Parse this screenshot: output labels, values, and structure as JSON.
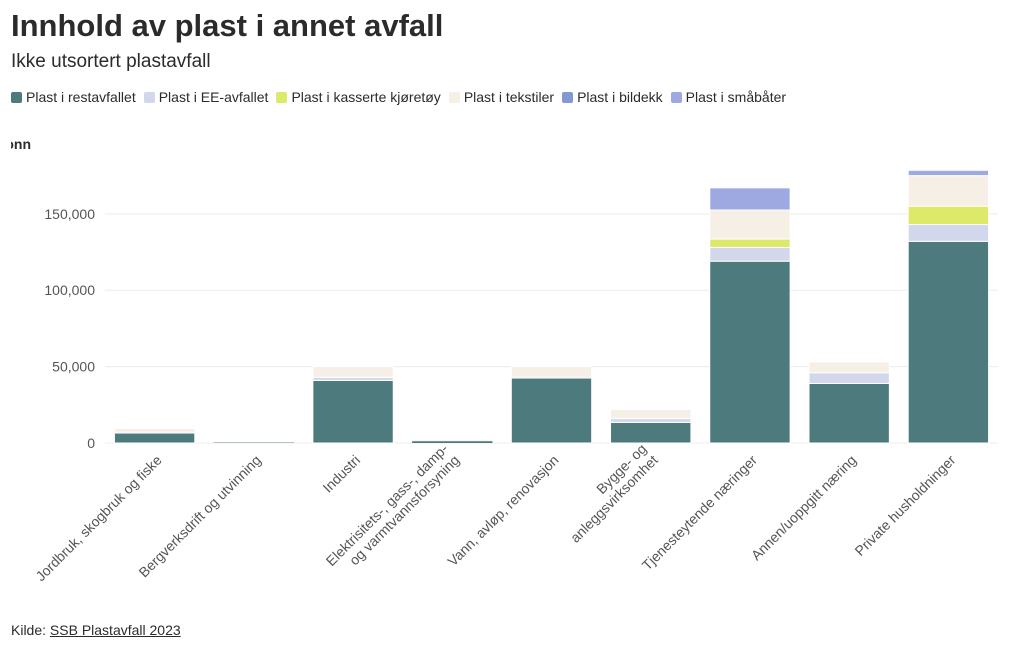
{
  "title": "Innhold av plast i annet avfall",
  "subtitle": "Ikke utsortert plastavfall",
  "unit_label": "Tonn",
  "source": {
    "prefix": "Kilde:",
    "link_text": "SSB Plastavfall 2023"
  },
  "colors": {
    "restavfall": "#4d7a7c",
    "ee": "#d3d7ec",
    "kjoretoy": "#dce969",
    "tekstiler": "#f6efe6",
    "bildekk": "#8499d4",
    "smabater": "#9ea9e2",
    "grid": "#ececec",
    "axis_text": "#555555"
  },
  "chart_data": {
    "type": "bar",
    "stacked": true,
    "ylim": [
      0,
      180000
    ],
    "yticks": [
      0,
      50000,
      100000,
      150000
    ],
    "ytick_labels": [
      "0",
      "50,000",
      "100,000",
      "150,000"
    ],
    "categories": [
      "Jordbruk, skogbruk og fiske",
      "Bergverksdrift og utvinning",
      "Industri",
      "Elektrisitets-, gass-, damp- og varmtvannsforsyning",
      "Vann, avløp, renovasjon",
      "Bygge- og anleggsvirksomhet",
      "Tjenesteytende næringer",
      "Annen/uoppgitt næring",
      "Private husholdninger"
    ],
    "category_lines": [
      [
        "Jordbruk, skogbruk og fiske"
      ],
      [
        "Bergverksdrift og utvinning"
      ],
      [
        "Industri"
      ],
      [
        "Elektrisitets-, gass-, damp-",
        "og varmtvannsforsyning"
      ],
      [
        "Vann, avløp, renovasjon"
      ],
      [
        "Bygge- og",
        "anleggsvirksomhet"
      ],
      [
        "Tjenesteytende næringer"
      ],
      [
        "Annen/uoppgitt næring"
      ],
      [
        "Private husholdninger"
      ]
    ],
    "series": [
      {
        "name": "Plast i restavfallet",
        "color_key": "restavfall",
        "values": [
          6500,
          300,
          41000,
          1200,
          42500,
          13500,
          119000,
          39000,
          132000
        ]
      },
      {
        "name": "Plast i EE-avfallet",
        "color_key": "ee",
        "values": [
          500,
          0,
          2000,
          200,
          500,
          2500,
          9000,
          7000,
          11000
        ]
      },
      {
        "name": "Plast i kasserte kjøretøy",
        "color_key": "kjoretoy",
        "values": [
          0,
          0,
          0,
          0,
          0,
          0,
          5500,
          0,
          12000
        ]
      },
      {
        "name": "Plast i tekstiler",
        "color_key": "tekstiler",
        "values": [
          2500,
          100,
          7000,
          300,
          7000,
          6000,
          19000,
          7000,
          20000
        ]
      },
      {
        "name": "Plast i bildekk",
        "color_key": "bildekk",
        "values": [
          0,
          0,
          0,
          0,
          0,
          0,
          0,
          0,
          0
        ]
      },
      {
        "name": "Plast i småbåter",
        "color_key": "smabater",
        "values": [
          0,
          0,
          0,
          0,
          0,
          0,
          14500,
          0,
          3500
        ]
      }
    ]
  }
}
